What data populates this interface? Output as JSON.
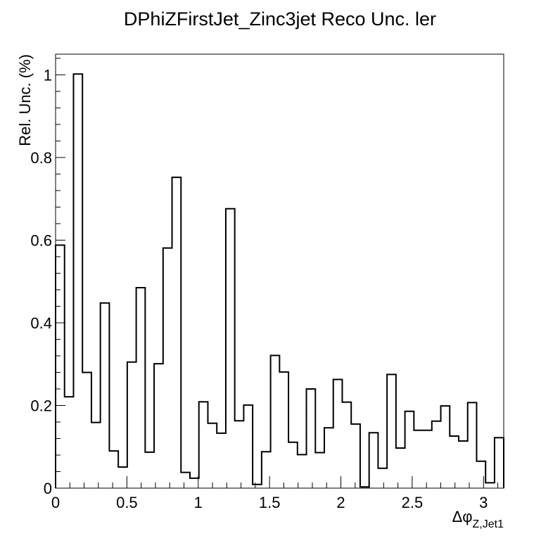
{
  "chart_data": {
    "type": "step-histogram",
    "title": "DPhiZFirstJet_Zinc3jet Reco Unc. ler",
    "ylabel": "Rel. Unc. (%)",
    "xlabel": "Δφ",
    "xlabel_sub": "Z,Jet1",
    "xlim": [
      0,
      3.1416
    ],
    "ylim": [
      0,
      1.05
    ],
    "bin_width": 0.0628,
    "x_ticks": [
      {
        "v": 0,
        "label": "0"
      },
      {
        "v": 0.5,
        "label": "0.5"
      },
      {
        "v": 1,
        "label": "1"
      },
      {
        "v": 1.5,
        "label": "1.5"
      },
      {
        "v": 2,
        "label": "2"
      },
      {
        "v": 2.5,
        "label": "2.5"
      },
      {
        "v": 3,
        "label": "3"
      }
    ],
    "y_ticks": [
      {
        "v": 0,
        "label": "0"
      },
      {
        "v": 0.2,
        "label": "0.2"
      },
      {
        "v": 0.4,
        "label": "0.4"
      },
      {
        "v": 0.6,
        "label": "0.6"
      },
      {
        "v": 0.8,
        "label": "0.8"
      },
      {
        "v": 1,
        "label": "1"
      }
    ],
    "values": [
      0.588,
      0.221,
      1.002,
      0.28,
      0.159,
      0.448,
      0.09,
      0.051,
      0.305,
      0.485,
      0.087,
      0.301,
      0.581,
      0.752,
      0.038,
      0.024,
      0.209,
      0.157,
      0.133,
      0.676,
      0.163,
      0.201,
      0.009,
      0.088,
      0.321,
      0.281,
      0.111,
      0.081,
      0.24,
      0.086,
      0.146,
      0.263,
      0.208,
      0.155,
      0.003,
      0.134,
      0.048,
      0.275,
      0.097,
      0.186,
      0.14,
      0.14,
      0.162,
      0.199,
      0.126,
      0.114,
      0.207,
      0.065,
      0.013,
      0.122
    ]
  }
}
